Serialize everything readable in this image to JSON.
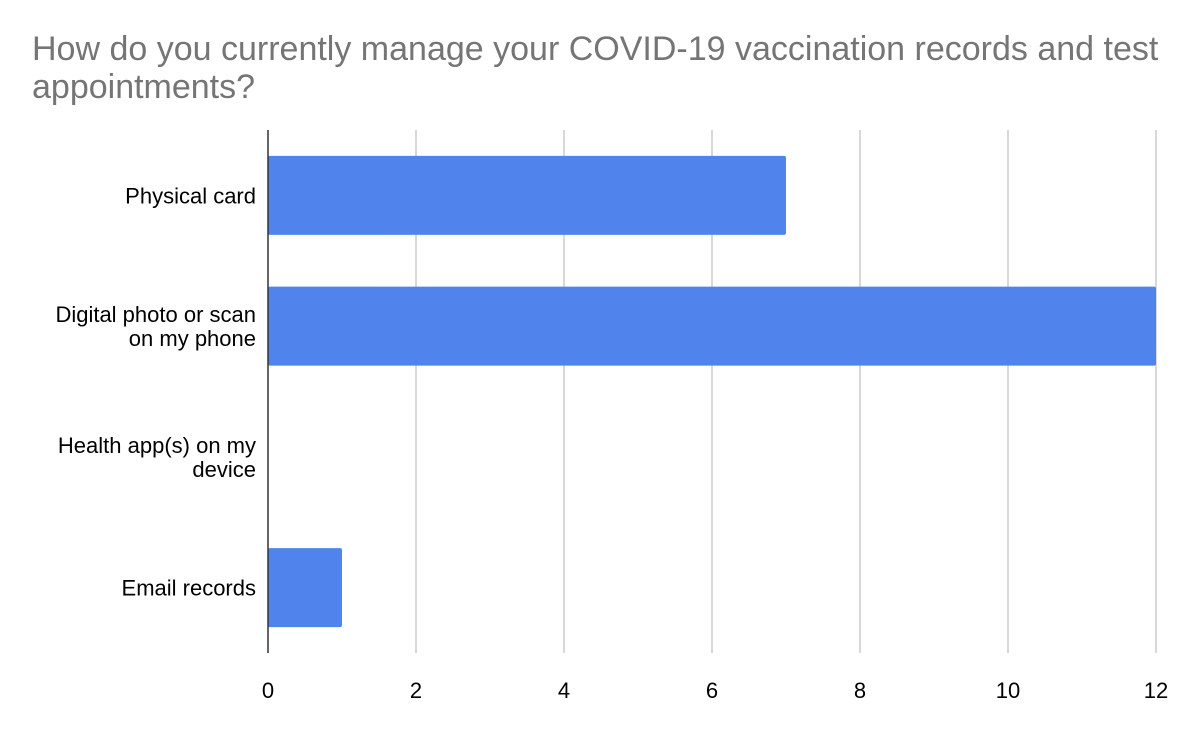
{
  "chart_data": {
    "type": "bar",
    "orientation": "horizontal",
    "title": "How do you currently manage your COVID-19 vaccination records and test appointments?",
    "categories": [
      [
        "Physical card"
      ],
      [
        "Digital photo or scan",
        "on my phone"
      ],
      [
        "Health app(s) on my",
        "device"
      ],
      [
        "Email records"
      ]
    ],
    "values": [
      7,
      12,
      0,
      1
    ],
    "xlim": [
      0,
      12
    ],
    "xticks": [
      "0",
      "2",
      "4",
      "6",
      "8",
      "10",
      "12"
    ],
    "xlabel": "",
    "ylabel": "",
    "grid": "vertical",
    "legend": "none",
    "colors": {
      "bar": "#5084ec",
      "grid": "#cccccc",
      "axis": "#333333",
      "title": "#757575",
      "text": "#000000"
    }
  }
}
